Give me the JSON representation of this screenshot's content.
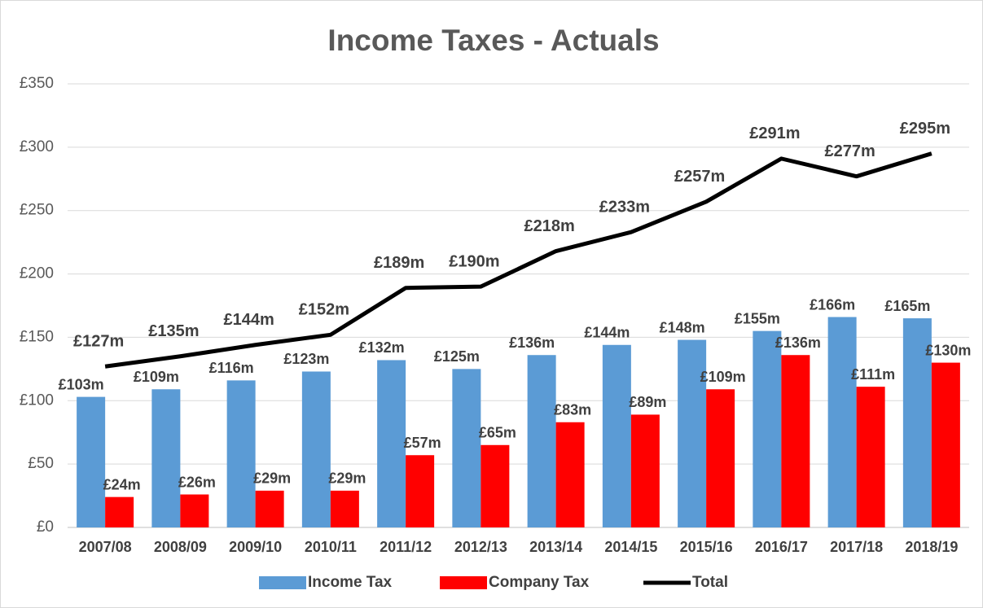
{
  "chart_data": {
    "type": "bar",
    "title": "Income Taxes - Actuals",
    "categories": [
      "2007/08",
      "2008/09",
      "2009/10",
      "2010/11",
      "2011/12",
      "2012/13",
      "2013/14",
      "2014/15",
      "2015/16",
      "2016/17",
      "2017/18",
      "2018/19"
    ],
    "series": [
      {
        "name": "Income Tax",
        "color": "#5b9bd5",
        "type": "bar",
        "values": [
          103,
          109,
          116,
          123,
          132,
          125,
          136,
          144,
          148,
          155,
          166,
          165
        ],
        "value_labels": [
          "£103m",
          "£109m",
          "£116m",
          "£123m",
          "£132m",
          "£125m",
          "£136m",
          "£144m",
          "£148m",
          "£155m",
          "£166m",
          "£165m"
        ]
      },
      {
        "name": "Company Tax",
        "color": "#ff0000",
        "type": "bar",
        "values": [
          24,
          26,
          29,
          29,
          57,
          65,
          83,
          89,
          109,
          136,
          111,
          130
        ],
        "value_labels": [
          "£24m",
          "£26m",
          "£29m",
          "£29m",
          "£57m",
          "£65m",
          "£83m",
          "£89m",
          "£109m",
          "£136m",
          "£111m",
          "£130m"
        ]
      },
      {
        "name": "Total",
        "color": "#000000",
        "type": "line",
        "values": [
          127,
          135,
          144,
          152,
          189,
          190,
          218,
          233,
          257,
          291,
          277,
          295
        ],
        "value_labels": [
          "£127m",
          "£135m",
          "£144m",
          "£152m",
          "£189m",
          "£190m",
          "£218m",
          "£233m",
          "£257m",
          "£291m",
          "£277m",
          "£295m"
        ]
      }
    ],
    "ylim": [
      0,
      350
    ],
    "yticks": [
      {
        "value": 0,
        "label": "£0"
      },
      {
        "value": 50,
        "label": "£50"
      },
      {
        "value": 100,
        "label": "£100"
      },
      {
        "value": 150,
        "label": "£150"
      },
      {
        "value": 200,
        "label": "£200"
      },
      {
        "value": 250,
        "label": "£250"
      },
      {
        "value": 300,
        "label": "£300"
      },
      {
        "value": 350,
        "label": "£350"
      }
    ],
    "grid": true,
    "legend": "bottom"
  }
}
